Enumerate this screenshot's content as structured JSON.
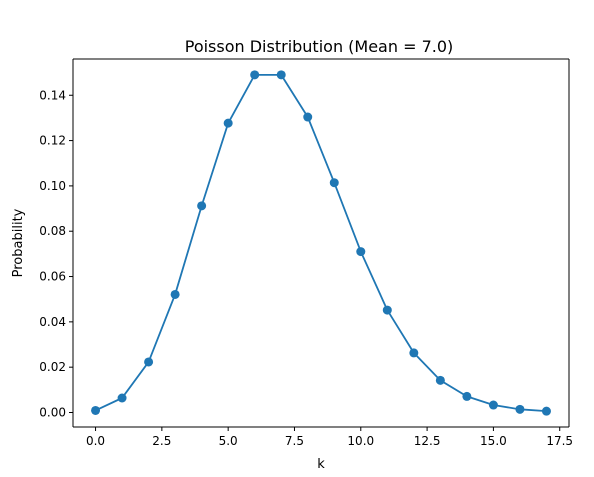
{
  "chart_data": {
    "type": "line",
    "title": "Poisson Distribution (Mean = 7.0)",
    "xlabel": "k",
    "ylabel": "Probability",
    "xlim": [
      -0.85,
      17.85
    ],
    "ylim": [
      -0.0064,
      0.156
    ],
    "xticks": [
      0.0,
      2.5,
      5.0,
      7.5,
      10.0,
      12.5,
      15.0,
      17.5
    ],
    "xtick_labels": [
      "0.0",
      "2.5",
      "5.0",
      "7.5",
      "10.0",
      "12.5",
      "15.0",
      "17.5"
    ],
    "yticks": [
      0.0,
      0.02,
      0.04,
      0.06,
      0.08,
      0.1,
      0.12,
      0.14
    ],
    "ytick_labels": [
      "0.00",
      "0.02",
      "0.04",
      "0.06",
      "0.08",
      "0.10",
      "0.12",
      "0.14"
    ],
    "grid": false,
    "series": [
      {
        "color": "#1f77b4",
        "marker": "circle",
        "x": [
          0,
          1,
          2,
          3,
          4,
          5,
          6,
          7,
          8,
          9,
          10,
          11,
          12,
          13,
          14,
          15,
          16,
          17
        ],
        "y": [
          0.0009,
          0.0064,
          0.0223,
          0.0521,
          0.0912,
          0.1277,
          0.149,
          0.149,
          0.1304,
          0.1014,
          0.071,
          0.0452,
          0.0263,
          0.0142,
          0.0071,
          0.0033,
          0.0014,
          0.0006
        ]
      }
    ]
  }
}
